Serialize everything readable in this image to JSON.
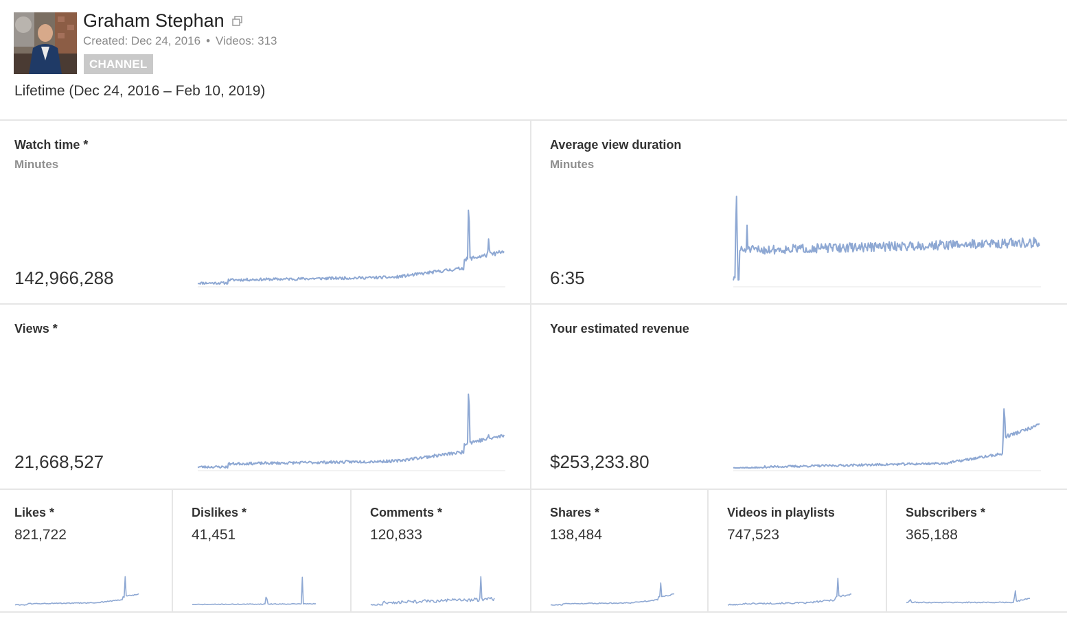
{
  "header": {
    "channel_name": "Graham Stephan",
    "created": "Created: Dec 24, 2016",
    "separator": "•",
    "videos": "Videos: 313",
    "badge": "CHANNEL",
    "lifetime_range": "Lifetime (Dec 24, 2016 – Feb 10, 2019)"
  },
  "colors": {
    "line": "#8ea8d3",
    "baseline": "#e4e4e4",
    "divider": "#e6e6e6"
  },
  "cards": {
    "watch_time": {
      "title": "Watch time *",
      "subtitle": "Minutes",
      "value": "142,966,288"
    },
    "avg_view_duration": {
      "title": "Average view duration",
      "subtitle": "Minutes",
      "value": "6:35"
    },
    "views": {
      "title": "Views *",
      "value": "21,668,527"
    },
    "revenue": {
      "title": "Your estimated revenue",
      "value": "$253,233.80"
    }
  },
  "small_cards": {
    "likes": {
      "title": "Likes *",
      "value": "821,722"
    },
    "dislikes": {
      "title": "Dislikes *",
      "value": "41,451"
    },
    "comments": {
      "title": "Comments *",
      "value": "120,833"
    },
    "shares": {
      "title": "Shares *",
      "value": "138,484"
    },
    "playlists": {
      "title": "Videos in playlists",
      "value": "747,523"
    },
    "subscribers": {
      "title": "Subscribers *",
      "value": "365,188"
    }
  }
}
